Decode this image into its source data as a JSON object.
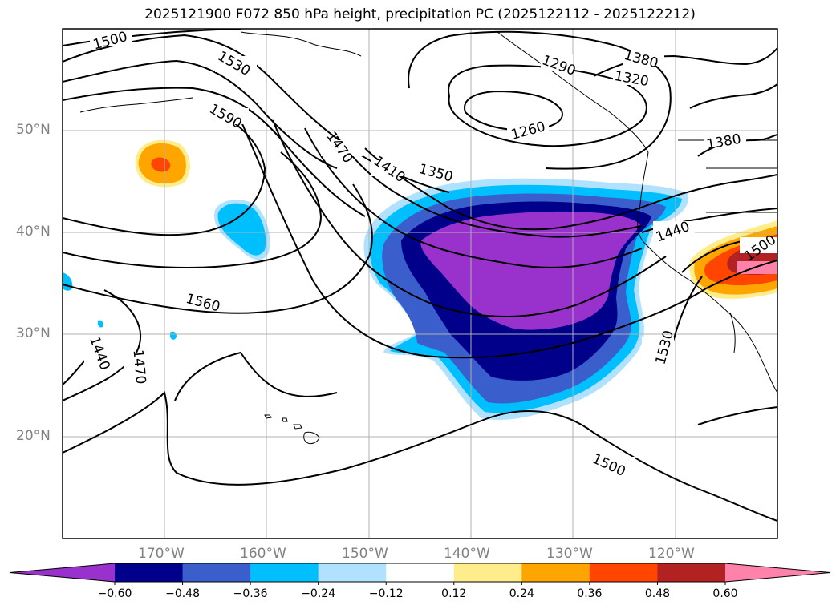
{
  "title": "2025121900 F072 850 hPa height, precipitation PC (2025122112 - 2025122212)",
  "lat_labels": [
    "50°N",
    "40°N",
    "30°N",
    "20°N"
  ],
  "lon_labels": [
    "170°W",
    "160°W",
    "150°W",
    "140°W",
    "130°W",
    "120°W"
  ],
  "contour_labels": [
    "1500",
    "1530",
    "1590",
    "1470",
    "1410",
    "1350",
    "1260",
    "1290",
    "1380",
    "1320",
    "1380",
    "1440",
    "1500",
    "1560",
    "1440",
    "1470",
    "1530",
    "1500"
  ],
  "colorbar": {
    "ticks": [
      "−0.60",
      "−0.48",
      "−0.36",
      "−0.24",
      "−0.12",
      "0.12",
      "0.24",
      "0.36",
      "0.48",
      "0.60"
    ],
    "colors": [
      "#9932cc",
      "#00008b",
      "#3a5fcd",
      "#00bfff",
      "#b0e2ff",
      "#ffffff",
      "#ffec8b",
      "#ffa500",
      "#ff4500",
      "#b22222",
      "#ff82ab"
    ]
  }
}
